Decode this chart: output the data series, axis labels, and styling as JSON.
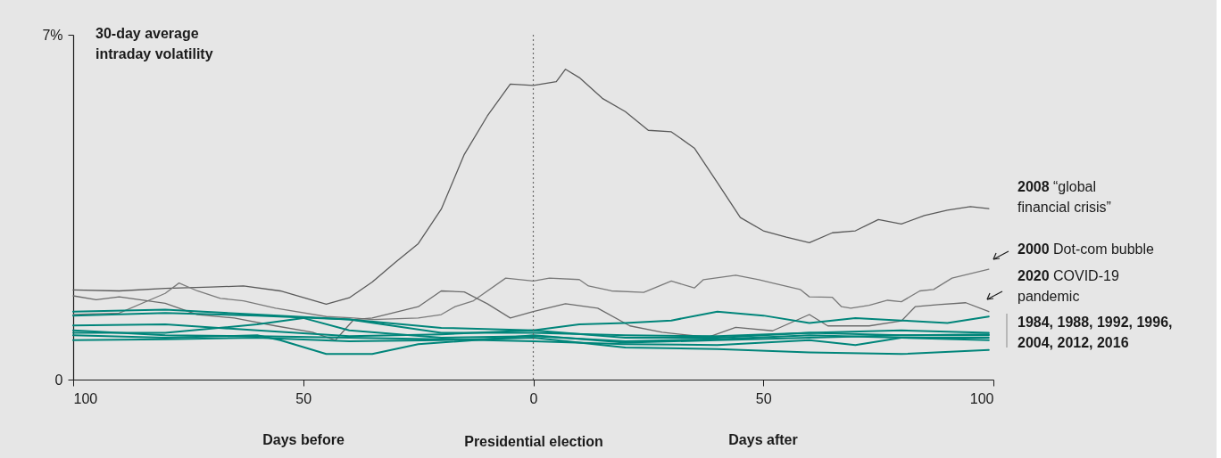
{
  "chart_data": {
    "type": "line",
    "ylabel": "30-day average intraday volatility",
    "xlim": [
      -100,
      100
    ],
    "xticks": [
      {
        "value": -100,
        "label": "100"
      },
      {
        "value": -50,
        "label": "50"
      },
      0,
      50,
      100
    ],
    "ylim": [
      0,
      7
    ],
    "yticks": [
      0,
      {
        "value": 7,
        "label": "7%"
      }
    ],
    "xlabel": "Presidential election",
    "grid": false,
    "marker": "none",
    "line_style": "solid",
    "ref_lines": [
      {
        "axis": "x",
        "value": 0,
        "line_style": "dotted",
        "color": "#6b6b6b"
      }
    ],
    "annotations": [
      "1984, 1988, 1992, 1996, 2004, 2012, 2016",
      "Days before",
      "Days after"
    ],
    "series": [
      {
        "name": "2008 “global financial crisis”",
        "color": "#5a5a5a",
        "x": [
          -100,
          -90,
          -80,
          -70,
          -63,
          -55,
          -45,
          -40,
          -35,
          -30,
          -25,
          -20,
          -15,
          -10,
          -5,
          0,
          5,
          7,
          10,
          15,
          20,
          25,
          30,
          35,
          40,
          45,
          50,
          55,
          60,
          65,
          70,
          75,
          80,
          85,
          90,
          95,
          99
        ],
        "values": [
          1.82,
          1.8,
          1.85,
          1.88,
          1.9,
          1.8,
          1.53,
          1.66,
          1.98,
          2.38,
          2.76,
          3.46,
          4.57,
          5.35,
          6.0,
          5.97,
          6.05,
          6.3,
          6.13,
          5.71,
          5.44,
          5.06,
          5.03,
          4.7,
          4.0,
          3.29,
          3.02,
          2.89,
          2.78,
          2.98,
          3.02,
          3.25,
          3.16,
          3.33,
          3.44,
          3.51,
          3.47
        ]
      },
      {
        "name": "2000 Dot-com bubble",
        "color": "#7a7a7a",
        "x": [
          -100,
          -90,
          -80,
          -77,
          -73,
          -68,
          -63,
          -56,
          -45,
          -39,
          -35,
          -25,
          -20,
          -17,
          -13,
          -6,
          0,
          3.5,
          10,
          12,
          17,
          24,
          30,
          35,
          37,
          44,
          49,
          52,
          58,
          60,
          65,
          67,
          69,
          73,
          77,
          80,
          84,
          87,
          91,
          99
        ],
        "values": [
          1.32,
          1.35,
          1.75,
          1.96,
          1.8,
          1.65,
          1.6,
          1.45,
          1.28,
          1.25,
          1.22,
          1.25,
          1.32,
          1.48,
          1.6,
          2.06,
          2.0,
          2.06,
          2.03,
          1.9,
          1.8,
          1.77,
          2.0,
          1.86,
          2.03,
          2.12,
          2.03,
          1.96,
          1.83,
          1.68,
          1.67,
          1.48,
          1.45,
          1.51,
          1.61,
          1.58,
          1.8,
          1.83,
          2.06,
          2.24
        ]
      },
      {
        "name": "2020 COVID-19 pandemic",
        "color": "#6b6b6b",
        "x": [
          -100,
          -95,
          -90,
          -80,
          -73,
          -65,
          -56,
          -48,
          -43,
          -39,
          -35,
          -25,
          -20,
          -15,
          -10,
          -5,
          0,
          7,
          14,
          21,
          28,
          38,
          44,
          52,
          60,
          64,
          73,
          80,
          83,
          88,
          94,
          99
        ],
        "values": [
          1.7,
          1.62,
          1.68,
          1.55,
          1.32,
          1.25,
          1.09,
          0.96,
          0.8,
          1.22,
          1.25,
          1.48,
          1.8,
          1.78,
          1.54,
          1.25,
          1.38,
          1.54,
          1.45,
          1.09,
          0.96,
          0.86,
          1.06,
          0.99,
          1.32,
          1.09,
          1.09,
          1.19,
          1.48,
          1.52,
          1.56,
          1.38
        ]
      },
      {
        "color": "#00857a",
        "x": [
          -100,
          -80,
          -60,
          -40,
          -20,
          0,
          10,
          20,
          30,
          40,
          50,
          60,
          70,
          80,
          90,
          99
        ],
        "values": [
          1.38,
          1.42,
          1.32,
          1.22,
          1.05,
          1.0,
          1.12,
          1.15,
          1.2,
          1.38,
          1.3,
          1.15,
          1.25,
          1.2,
          1.15,
          1.28
        ]
      },
      {
        "color": "#00857a",
        "x": [
          -100,
          -80,
          -60,
          -40,
          -20,
          0,
          20,
          40,
          60,
          80,
          99
        ],
        "values": [
          1.3,
          1.35,
          1.3,
          1.22,
          0.95,
          0.95,
          0.9,
          0.88,
          0.95,
          0.9,
          0.92
        ]
      },
      {
        "color": "#00857a",
        "x": [
          -100,
          -80,
          -60,
          -40,
          -20,
          0,
          20,
          40,
          60,
          80,
          99
        ],
        "values": [
          1.1,
          1.12,
          1.0,
          0.88,
          0.92,
          1.0,
          0.85,
          0.85,
          0.95,
          1.0,
          0.95
        ]
      },
      {
        "color": "#00857a",
        "x": [
          -100,
          -80,
          -60,
          -50,
          -40,
          -20,
          0,
          20,
          40,
          60,
          80,
          99
        ],
        "values": [
          0.95,
          0.95,
          1.12,
          1.25,
          1.0,
          0.85,
          0.88,
          0.78,
          0.82,
          0.9,
          0.85,
          0.8
        ]
      },
      {
        "color": "#00857a",
        "x": [
          -100,
          -80,
          -60,
          -55,
          -45,
          -35,
          -25,
          -10,
          0,
          20,
          40,
          60,
          80,
          99
        ],
        "values": [
          0.9,
          0.85,
          0.9,
          0.8,
          0.52,
          0.52,
          0.72,
          0.82,
          0.9,
          0.75,
          0.8,
          0.85,
          0.9,
          0.9
        ]
      },
      {
        "color": "#00857a",
        "x": [
          -100,
          -80,
          -60,
          -40,
          -20,
          0,
          20,
          40,
          60,
          80,
          99
        ],
        "values": [
          0.8,
          0.82,
          0.85,
          0.78,
          0.8,
          0.85,
          0.65,
          0.62,
          0.55,
          0.52,
          0.6
        ]
      },
      {
        "color": "#00857a",
        "x": [
          -100,
          -80,
          -60,
          -40,
          -20,
          0,
          20,
          40,
          60,
          70,
          80,
          99
        ],
        "values": [
          1.0,
          0.9,
          0.88,
          0.85,
          0.82,
          0.78,
          0.72,
          0.7,
          0.8,
          0.7,
          0.85,
          0.85
        ]
      }
    ]
  }
}
